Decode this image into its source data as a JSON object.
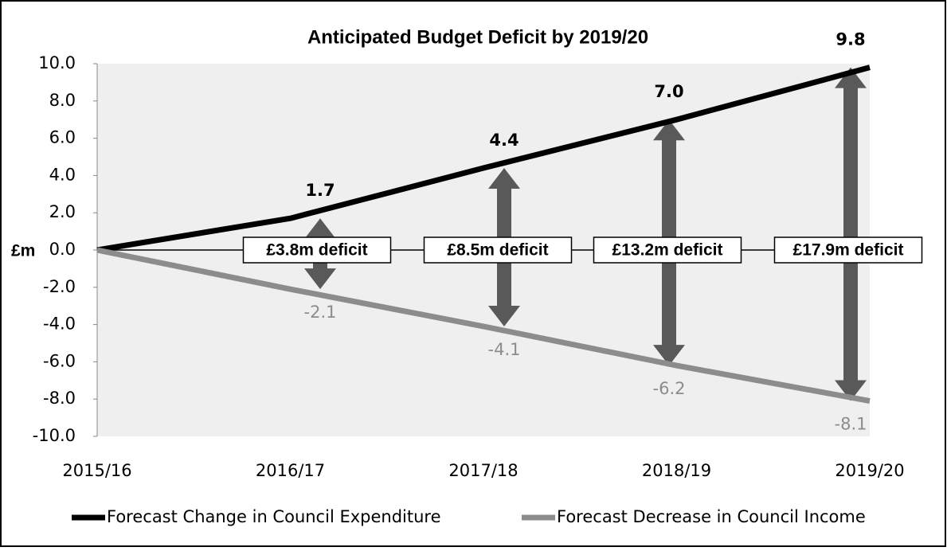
{
  "chart_data": {
    "type": "line",
    "title": "Anticipated Budget Deficit by 2019/20",
    "ylabel": "£m",
    "categories": [
      "2015/16",
      "2016/17",
      "2017/18",
      "2018/19",
      "2019/20"
    ],
    "series": [
      {
        "name": "Forecast Change in Council Expenditure",
        "color": "#000000",
        "values": [
          0,
          1.7,
          4.4,
          7.0,
          9.8
        ],
        "value_labels": [
          null,
          "1.7",
          "4.4",
          "7.0",
          "9.8"
        ]
      },
      {
        "name": "Forecast Decrease in Council Income",
        "color": "#8c8c8c",
        "values": [
          0,
          -2.1,
          -4.1,
          -6.2,
          -8.1
        ],
        "value_labels": [
          null,
          "-2.1",
          "-4.1",
          "-6.2",
          "-8.1"
        ]
      }
    ],
    "annotations": [
      "£3.8m deficit",
      "£8.5m deficit",
      "£13.2m deficit",
      "£17.9m deficit"
    ],
    "ylim": [
      -10,
      10
    ],
    "yticks": [
      {
        "value": -10,
        "label": "-10.0"
      },
      {
        "value": -8,
        "label": "-8.0"
      },
      {
        "value": -6,
        "label": "-6.0"
      },
      {
        "value": -4,
        "label": "-4.0"
      },
      {
        "value": -2,
        "label": "-2.0"
      },
      {
        "value": 0,
        "label": "0.0"
      },
      {
        "value": 2,
        "label": "2.0"
      },
      {
        "value": 4,
        "label": "4.0"
      },
      {
        "value": 6,
        "label": "6.0"
      },
      {
        "value": 8,
        "label": "8.0"
      },
      {
        "value": 10,
        "label": "10.0"
      }
    ],
    "legend": "bottom"
  }
}
